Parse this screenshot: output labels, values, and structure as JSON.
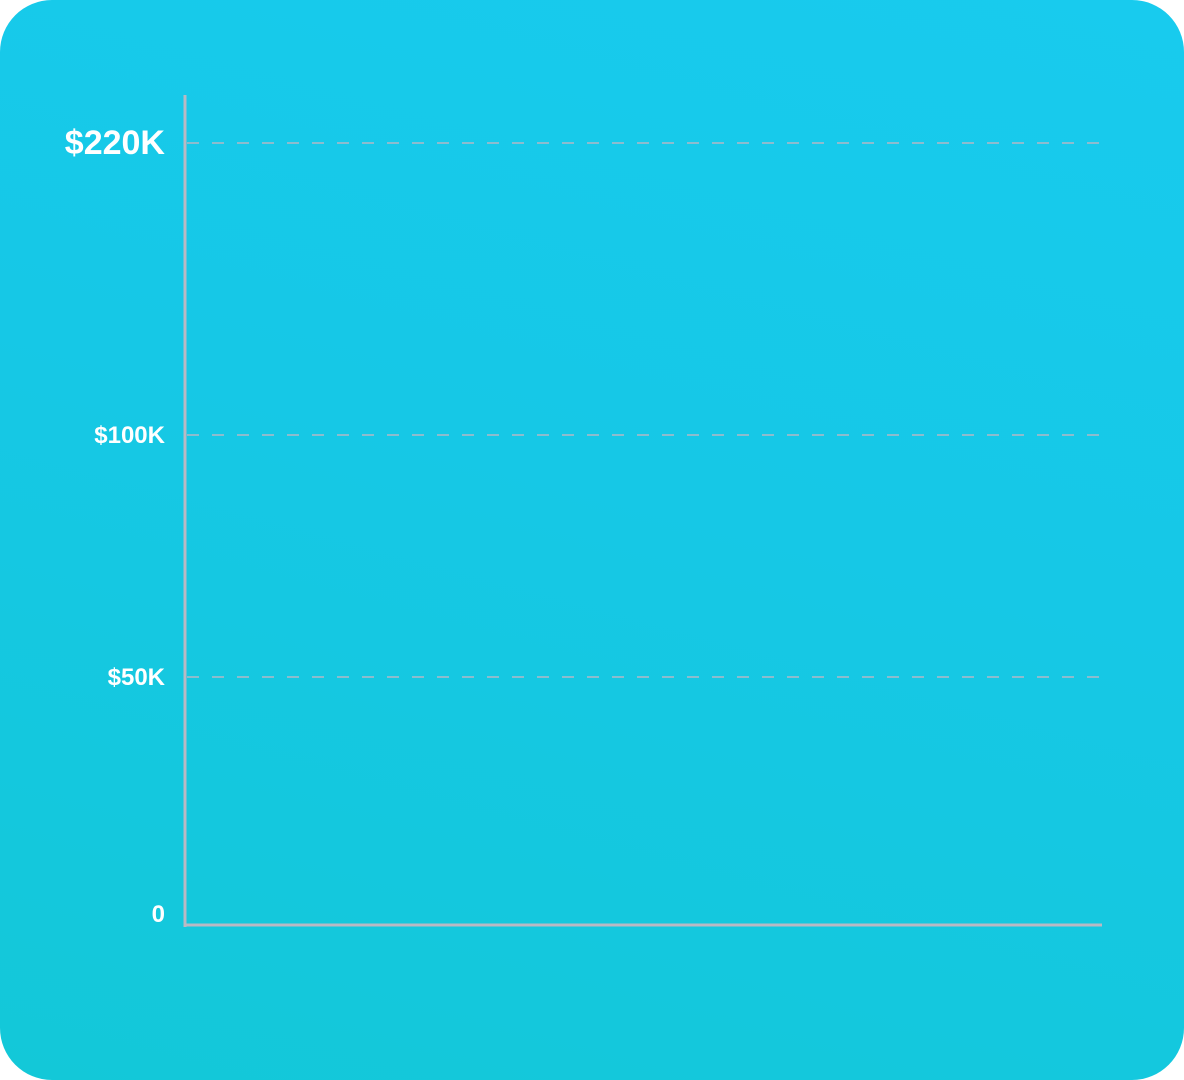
{
  "chart_data": {
    "type": "bar",
    "title": "",
    "xlabel": "",
    "ylabel": "",
    "categories": [],
    "values": [],
    "y_ticks": [
      {
        "value": 220000,
        "label": "$220K",
        "emphasis": true
      },
      {
        "value": 100000,
        "label": "$100K",
        "emphasis": false
      },
      {
        "value": 50000,
        "label": "$50K",
        "emphasis": false
      },
      {
        "value": 0,
        "label": "0",
        "emphasis": false
      }
    ],
    "ylim": [
      0,
      220000
    ],
    "grid": "dashed horizontal",
    "colors": {
      "background_start": "#13c8d8",
      "background_end": "#18cbee",
      "axis": "#b9b9c4",
      "grid": "#b4b8c6",
      "labels": "#ffffff"
    }
  }
}
